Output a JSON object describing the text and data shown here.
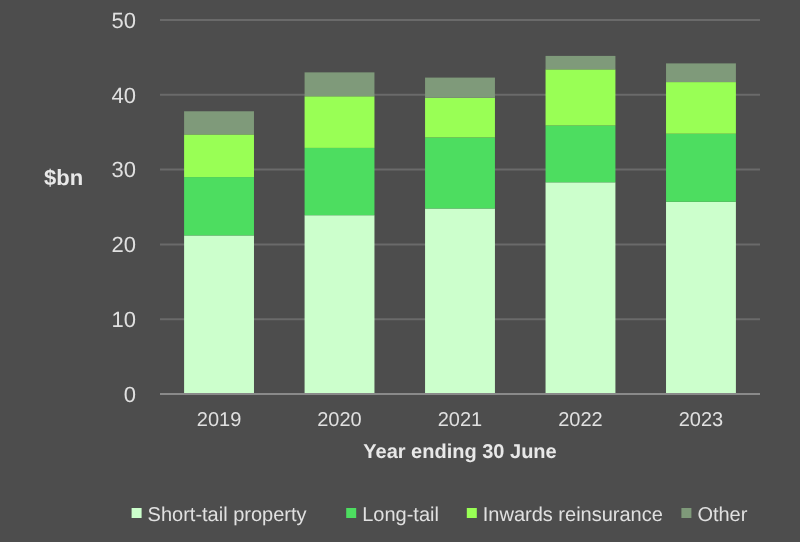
{
  "chart_data": {
    "type": "bar",
    "stacked": true,
    "xlabel": "Year ending 30 June",
    "ylabel": "$bn",
    "categories": [
      "2019",
      "2020",
      "2021",
      "2022",
      "2023"
    ],
    "series": [
      {
        "name": "Short-tail property",
        "color": "#ccffcc",
        "values": [
          21.2,
          23.9,
          24.8,
          28.3,
          25.7
        ]
      },
      {
        "name": "Long-tail",
        "color": "#4ddd60",
        "values": [
          7.8,
          9.0,
          9.5,
          7.6,
          9.1
        ]
      },
      {
        "name": "Inwards reinsurance",
        "color": "#99ff55",
        "values": [
          5.7,
          6.9,
          5.3,
          7.5,
          6.9
        ]
      },
      {
        "name": "Other",
        "color": "#7f9a7a",
        "values": [
          3.1,
          3.2,
          2.7,
          1.8,
          2.5
        ]
      }
    ],
    "ylim": [
      0,
      50
    ],
    "yticks": [
      0,
      10,
      20,
      30,
      40,
      50
    ],
    "grid": "y",
    "legend": "bottom"
  }
}
